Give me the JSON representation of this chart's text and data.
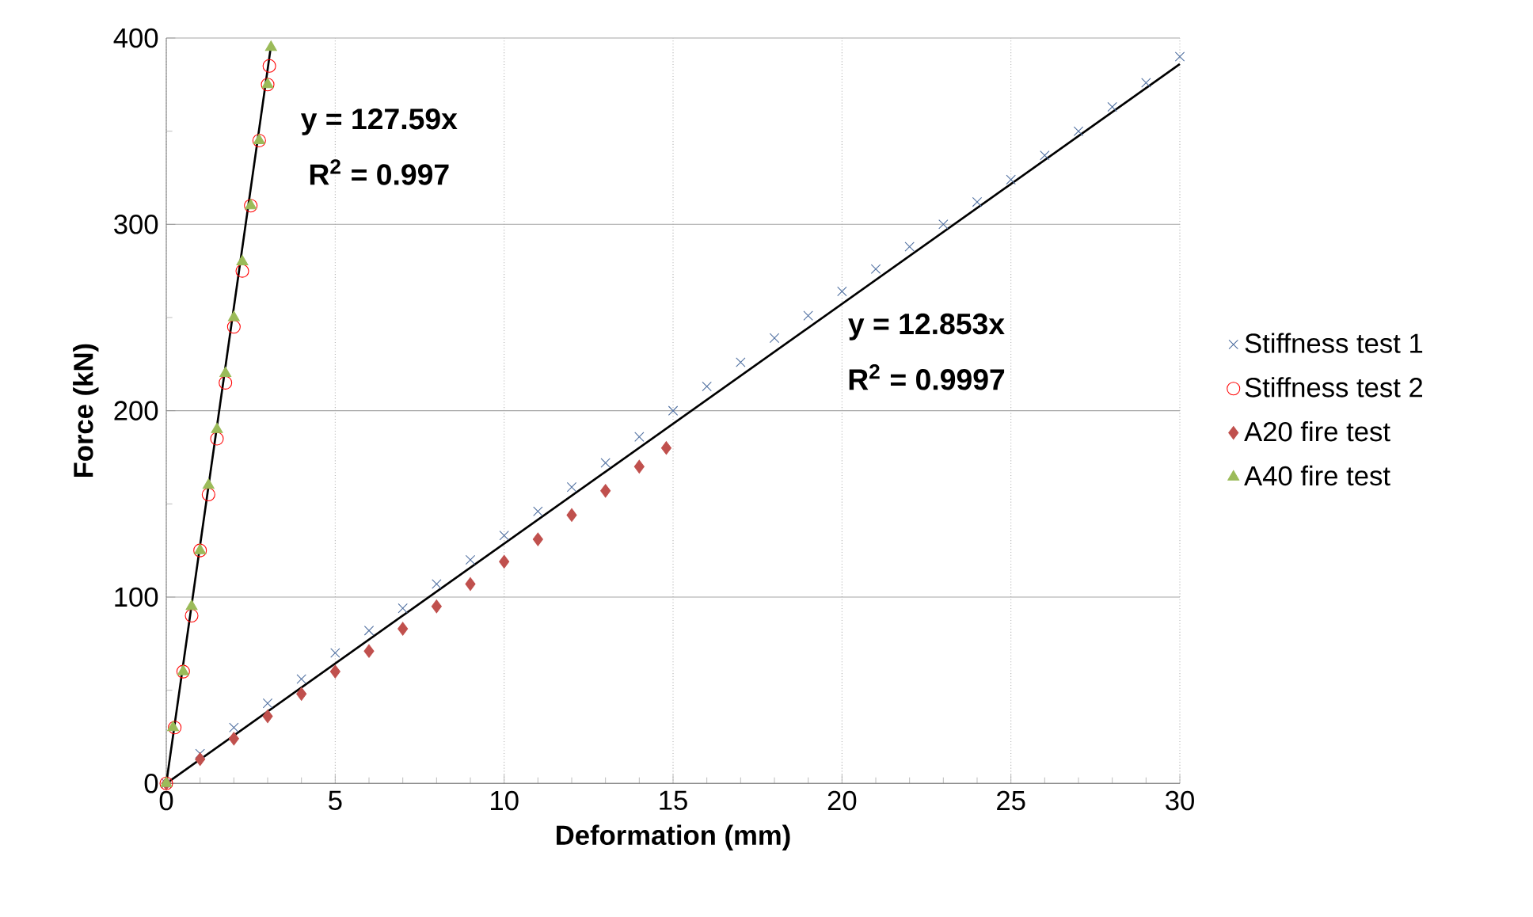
{
  "chart_data": {
    "type": "scatter",
    "xlabel": "Deformation (mm)",
    "ylabel": "Force (kN)",
    "xlim": [
      0,
      30
    ],
    "ylim": [
      0,
      400
    ],
    "xticks": [
      0,
      5,
      10,
      15,
      20,
      25,
      30
    ],
    "yticks": [
      0,
      100,
      200,
      300,
      400
    ],
    "grid": true,
    "legend": "right",
    "annotations": [
      "y = 127.59x",
      "R$^{2}$ = 0.997",
      "y = 12.853x",
      "R$^{2}$ = 0.9997"
    ],
    "series": [
      {
        "name": "Stiffness test 1",
        "color": "#4f6fa0",
        "marker": "cross",
        "x": [
          0,
          1,
          2,
          3,
          4,
          5,
          6,
          7,
          8,
          9,
          10,
          11,
          12,
          13,
          14,
          15,
          16,
          17,
          18,
          19,
          20,
          21,
          22,
          23,
          24,
          25,
          26,
          27,
          28,
          29,
          30
        ],
        "values": [
          0,
          16,
          30,
          43,
          56,
          70,
          82,
          94,
          107,
          120,
          133,
          146,
          159,
          172,
          186,
          200,
          213,
          226,
          239,
          251,
          264,
          276,
          288,
          300,
          312,
          324,
          337,
          350,
          363,
          376,
          390
        ]
      },
      {
        "name": "Stiffness test 2",
        "color": "#ff0000",
        "marker": "circle",
        "x": [
          0,
          0.25,
          0.5,
          0.75,
          1,
          1.25,
          1.5,
          1.75,
          2,
          2.25,
          2.5,
          2.75,
          3,
          3.05
        ],
        "values": [
          0,
          30,
          60,
          90,
          125,
          155,
          185,
          215,
          245,
          275,
          310,
          345,
          375,
          385
        ]
      },
      {
        "name": "A20 fire test",
        "color": "#c0504d",
        "marker": "diamond",
        "x": [
          0,
          1,
          2,
          3,
          4,
          5,
          6,
          7,
          8,
          9,
          10,
          11,
          12,
          13,
          14,
          14.8
        ],
        "values": [
          0,
          13,
          24,
          36,
          48,
          60,
          71,
          83,
          95,
          107,
          119,
          131,
          144,
          157,
          170,
          180
        ]
      },
      {
        "name": "A40 fire test",
        "color": "#9bbb59",
        "marker": "triangle",
        "x": [
          0,
          0.2,
          0.5,
          0.75,
          1,
          1.25,
          1.5,
          1.75,
          2,
          2.25,
          2.5,
          2.75,
          3,
          3.1
        ],
        "values": [
          0,
          30,
          60,
          95,
          125,
          160,
          190,
          220,
          250,
          280,
          310,
          345,
          375,
          395
        ]
      },
      {
        "type": "line",
        "color": "#000000",
        "marker": "none",
        "line_style": "solid",
        "x": [
          0,
          3.1
        ],
        "values": [
          0,
          396
        ]
      },
      {
        "type": "line",
        "color": "#000000",
        "marker": "none",
        "line_style": "solid",
        "x": [
          0,
          30
        ],
        "values": [
          0,
          386
        ]
      }
    ]
  }
}
